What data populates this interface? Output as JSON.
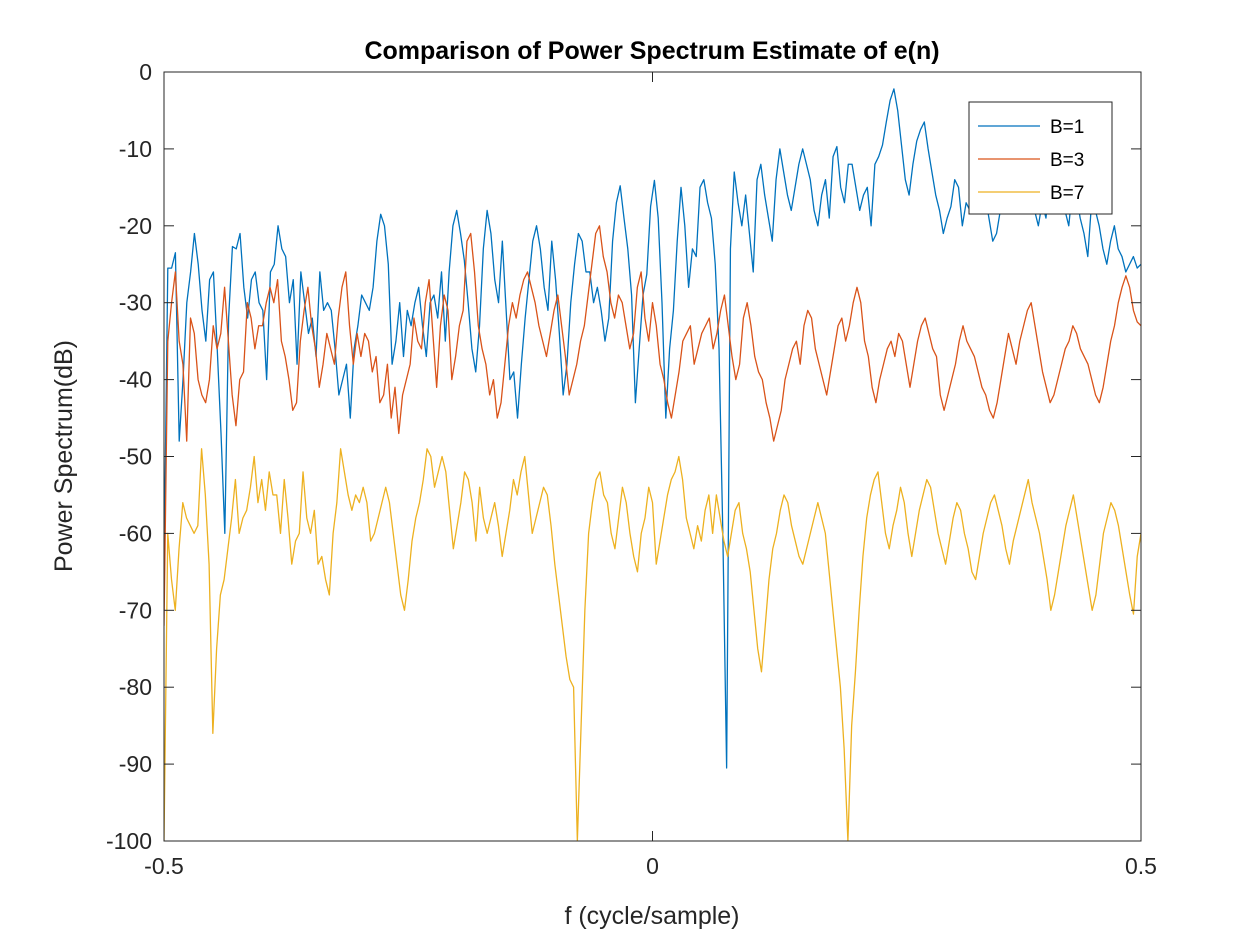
{
  "chart_data": {
    "type": "line",
    "title": "Comparison of Power Spectrum Estimate of e(n)",
    "xlabel": "f (cycle/sample)",
    "ylabel": "Power Spectrum(dB)",
    "xlim": [
      -0.5,
      0.5
    ],
    "ylim": [
      -100,
      0
    ],
    "xticks": [
      -0.5,
      0,
      0.5
    ],
    "xtick_labels": [
      "-0.5",
      "0",
      "0.5"
    ],
    "yticks": [
      0,
      -10,
      -20,
      -30,
      -40,
      -50,
      -60,
      -70,
      -80,
      -90,
      -100
    ],
    "ytick_labels": [
      "0",
      "-10",
      "-20",
      "-30",
      "-40",
      "-50",
      "-60",
      "-70",
      "-80",
      "-90",
      "-100"
    ],
    "grid": false,
    "legend_position": "top-right",
    "x_samples": 256,
    "series": [
      {
        "name": "B=1",
        "color": "#0072bd",
        "values": [
          -65,
          -25.5,
          -25.5,
          -23.5,
          -48,
          -40,
          -30,
          -26,
          -21,
          -25,
          -31,
          -35,
          -27,
          -26,
          -36,
          -47,
          -60,
          -32,
          -22.7,
          -23,
          -21,
          -28,
          -32,
          -27,
          -26,
          -30,
          -31,
          -40,
          -26,
          -25,
          -20,
          -23,
          -24,
          -30,
          -27,
          -38,
          -26,
          -30,
          -34,
          -32,
          -37,
          -26,
          -31,
          -30,
          -31,
          -36,
          -42,
          -40,
          -38,
          -45,
          -36,
          -33,
          -29,
          -30,
          -31,
          -28,
          -22,
          -18.5,
          -20,
          -25,
          -38,
          -35,
          -30,
          -37,
          -31,
          -33,
          -30,
          -28,
          -33,
          -37,
          -30,
          -29,
          -32,
          -26,
          -35,
          -26,
          -20,
          -18,
          -21,
          -24.5,
          -30,
          -36,
          -39,
          -33,
          -23,
          -18,
          -21,
          -27,
          -30,
          -22,
          -31,
          -40,
          -39,
          -45,
          -38,
          -32,
          -27,
          -22,
          -20,
          -23,
          -28,
          -31,
          -22,
          -27,
          -34,
          -42,
          -38,
          -30,
          -25,
          -21,
          -22,
          -26,
          -26,
          -30,
          -28,
          -31,
          -35,
          -32,
          -22,
          -17,
          -14.8,
          -19,
          -23,
          -29,
          -43,
          -36,
          -29,
          -26.3,
          -17.5,
          -14.1,
          -19,
          -30,
          -45,
          -36,
          -31,
          -22,
          -15,
          -20,
          -28,
          -23,
          -24,
          -15,
          -14,
          -17,
          -19,
          -25,
          -36,
          -60,
          -90.5,
          -23,
          -13,
          -17,
          -20,
          -16,
          -21,
          -26,
          -14,
          -12,
          -16,
          -19,
          -22,
          -14,
          -10,
          -13,
          -16,
          -18,
          -15,
          -12,
          -10,
          -12,
          -14,
          -18,
          -20,
          -16,
          -14,
          -19,
          -11,
          -9.7,
          -15,
          -17,
          -12,
          -12,
          -15,
          -18,
          -16,
          -15,
          -20,
          -12,
          -11,
          -9.5,
          -6.5,
          -3.7,
          -2.2,
          -5,
          -9.5,
          -14,
          -16,
          -12,
          -9,
          -7.5,
          -6.5,
          -10,
          -13,
          -16,
          -18,
          -21,
          -19,
          -17.5,
          -14,
          -15,
          -20,
          -17,
          -18,
          -16,
          -17,
          -14,
          -16,
          -19,
          -22,
          -21,
          -18,
          -15,
          -13,
          -10,
          -12,
          -15,
          -17,
          -14,
          -13,
          -18,
          -20,
          -17,
          -19,
          -14,
          -13,
          -11,
          -14,
          -18,
          -20,
          -15,
          -16,
          -19,
          -21,
          -24,
          -17,
          -18,
          -20,
          -23,
          -25,
          -22,
          -20,
          -23,
          -24,
          -26,
          -25,
          -24,
          -25.5,
          -25
        ]
      },
      {
        "name": "B=3",
        "color": "#d95319",
        "values": [
          -72,
          -35,
          -30,
          -26,
          -35,
          -38,
          -48,
          -32,
          -34,
          -40,
          -42,
          -43,
          -40,
          -33,
          -36,
          -34,
          -28,
          -35,
          -42,
          -46,
          -40,
          -39,
          -30,
          -32,
          -36,
          -33,
          -33,
          -30,
          -28,
          -30,
          -27,
          -35,
          -37,
          -40,
          -44,
          -43,
          -35,
          -31,
          -28,
          -33,
          -36,
          -41,
          -38,
          -34,
          -36,
          -38,
          -32,
          -28,
          -26,
          -33,
          -38,
          -34,
          -37,
          -34,
          -35,
          -39,
          -37,
          -43,
          -42,
          -38,
          -45,
          -41,
          -47,
          -42,
          -40,
          -38,
          -32,
          -35,
          -36,
          -30,
          -27,
          -34,
          -41,
          -33,
          -29,
          -31,
          -40,
          -37,
          -33,
          -31,
          -22,
          -21,
          -26,
          -33,
          -36,
          -38,
          -42,
          -40,
          -45,
          -43,
          -38,
          -33,
          -30,
          -32,
          -29,
          -27,
          -26,
          -28,
          -30,
          -33,
          -35,
          -37,
          -34,
          -31,
          -29,
          -33,
          -37,
          -42,
          -40,
          -38,
          -35,
          -33,
          -29,
          -25,
          -21,
          -20,
          -24,
          -26,
          -30,
          -32,
          -29,
          -30,
          -33,
          -36,
          -34,
          -28,
          -26,
          -32,
          -35,
          -30,
          -33,
          -38,
          -40,
          -43,
          -45,
          -42,
          -39,
          -35,
          -34,
          -33,
          -38,
          -36,
          -34,
          -33,
          -32,
          -36,
          -34,
          -31,
          -29,
          -33,
          -37,
          -40,
          -38,
          -32,
          -30,
          -33,
          -37,
          -39,
          -40,
          -43,
          -45,
          -48,
          -46,
          -44,
          -40,
          -38,
          -36,
          -35,
          -38,
          -33,
          -31,
          -32,
          -36,
          -38,
          -40,
          -42,
          -39,
          -36,
          -33,
          -32,
          -35,
          -33,
          -30,
          -28,
          -30,
          -35,
          -37,
          -41,
          -43,
          -40,
          -38,
          -36,
          -35,
          -37,
          -34,
          -35,
          -38,
          -41,
          -38,
          -35,
          -33,
          -32,
          -34,
          -36,
          -37,
          -42,
          -44,
          -42,
          -40,
          -38,
          -35,
          -33,
          -35,
          -36,
          -37,
          -39,
          -41,
          -42,
          -44,
          -45,
          -43,
          -40,
          -37,
          -34,
          -36,
          -38,
          -35,
          -33,
          -31,
          -30,
          -33,
          -36,
          -39,
          -41,
          -43,
          -42,
          -40,
          -38,
          -36,
          -35,
          -33,
          -34,
          -36,
          -37,
          -38,
          -40,
          -42,
          -43,
          -41,
          -38,
          -35,
          -33,
          -30,
          -28,
          -26.5,
          -28,
          -31,
          -32.5,
          -33
        ]
      },
      {
        "name": "B=7",
        "color": "#edb120",
        "values": [
          -100,
          -60,
          -66,
          -70,
          -62,
          -56,
          -58,
          -59,
          -60,
          -59,
          -49,
          -55,
          -64,
          -86,
          -75,
          -68,
          -66,
          -62,
          -58,
          -53,
          -60,
          -58,
          -57,
          -54,
          -50,
          -56,
          -53,
          -57,
          -52,
          -55,
          -55,
          -60,
          -53,
          -58,
          -64,
          -61,
          -60,
          -52,
          -58,
          -60,
          -57,
          -64,
          -63,
          -66,
          -68,
          -60,
          -56,
          -49,
          -52,
          -55,
          -57,
          -55,
          -56,
          -54,
          -56,
          -61,
          -60,
          -58,
          -56,
          -54,
          -56,
          -60,
          -64,
          -68,
          -70,
          -66,
          -61,
          -58,
          -56,
          -53,
          -49,
          -50,
          -54,
          -52,
          -50,
          -52,
          -57,
          -62,
          -59,
          -56,
          -52,
          -53,
          -56,
          -61,
          -54,
          -58,
          -60,
          -58,
          -56,
          -59,
          -63,
          -60,
          -57,
          -53,
          -55,
          -52,
          -50,
          -55,
          -60,
          -58,
          -56,
          -54,
          -55,
          -59,
          -64,
          -68,
          -72,
          -76,
          -79,
          -80,
          -100,
          -85,
          -70,
          -60,
          -56,
          -53,
          -52,
          -55,
          -56,
          -60,
          -62,
          -58,
          -54,
          -56,
          -60,
          -63,
          -65,
          -60,
          -58,
          -54,
          -56,
          -64,
          -61,
          -58,
          -55,
          -53,
          -52,
          -50,
          -53,
          -58,
          -60,
          -62,
          -59,
          -61,
          -57,
          -55,
          -60,
          -55,
          -58,
          -61,
          -63,
          -60,
          -57,
          -56,
          -60,
          -62,
          -65,
          -70,
          -75,
          -78,
          -72,
          -66,
          -62,
          -60,
          -57,
          -55,
          -56,
          -59,
          -61,
          -63,
          -64,
          -62,
          -60,
          -58,
          -56,
          -58,
          -60,
          -65,
          -70,
          -75,
          -80,
          -88,
          -100,
          -85,
          -78,
          -70,
          -63,
          -58,
          -55,
          -53,
          -52,
          -56,
          -60,
          -62,
          -59,
          -57,
          -54,
          -56,
          -60,
          -63,
          -60,
          -57,
          -55,
          -53,
          -54,
          -57,
          -60,
          -62,
          -64,
          -61,
          -58,
          -56,
          -57,
          -60,
          -62,
          -65,
          -66,
          -63,
          -60,
          -58,
          -56,
          -55,
          -57,
          -59,
          -62,
          -64,
          -61,
          -59,
          -57,
          -55,
          -53,
          -56,
          -58,
          -60,
          -63,
          -66,
          -70,
          -68,
          -65,
          -62,
          -59,
          -57,
          -55,
          -58,
          -61,
          -64,
          -67,
          -70,
          -68,
          -64,
          -60,
          -58,
          -56,
          -57,
          -59,
          -62,
          -65,
          -68,
          -70.5,
          -63,
          -60
        ]
      }
    ]
  }
}
